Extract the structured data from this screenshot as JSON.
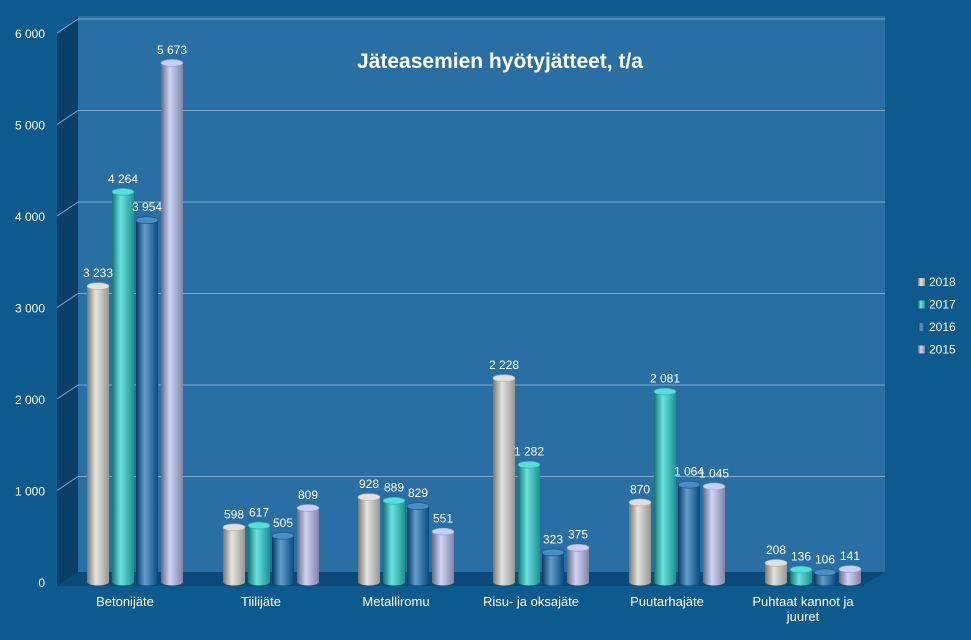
{
  "chart_data": {
    "type": "bar",
    "title": "Jäteasemien hyötyjätteet, t/a",
    "xlabel": "",
    "ylabel": "",
    "ylim": [
      0,
      6000
    ],
    "yticks": [
      0,
      1000,
      2000,
      3000,
      4000,
      5000,
      6000
    ],
    "ytick_labels": [
      "0",
      "1 000",
      "2 000",
      "3 000",
      "4 000",
      "5 000",
      "6 000"
    ],
    "grid": true,
    "legend_position": "right",
    "categories": [
      [
        "Betonijäte"
      ],
      [
        "Tiilijäte"
      ],
      [
        "Metalliromu"
      ],
      [
        "Risu- ja oksajäte"
      ],
      [
        "Puutarhajäte"
      ],
      [
        "Puhtaat kannot ja",
        "juuret"
      ]
    ],
    "series": [
      {
        "name": "2018",
        "color": "#d9d6d0",
        "values": [
          3233,
          598,
          928,
          2228,
          870,
          208
        ],
        "labels": [
          "3 233",
          "598",
          "928",
          "2 228",
          "870",
          "208"
        ]
      },
      {
        "name": "2017",
        "color": "#1fd3cf",
        "values": [
          4264,
          617,
          889,
          1282,
          2081,
          136
        ],
        "labels": [
          "4 264",
          "617",
          "889",
          "1 282",
          "2 081",
          "136"
        ]
      },
      {
        "name": "2016",
        "color": "#0d68b0",
        "values": [
          3954,
          505,
          829,
          323,
          1064,
          106
        ],
        "labels": [
          "3 954",
          "505",
          "829",
          "323",
          "1 064",
          "106"
        ]
      },
      {
        "name": "2015",
        "color": "#b7bdf0",
        "values": [
          5673,
          809,
          551,
          375,
          1045,
          141
        ],
        "labels": [
          "5 673",
          "809",
          "551",
          "375",
          "1 045",
          "141"
        ]
      }
    ]
  }
}
